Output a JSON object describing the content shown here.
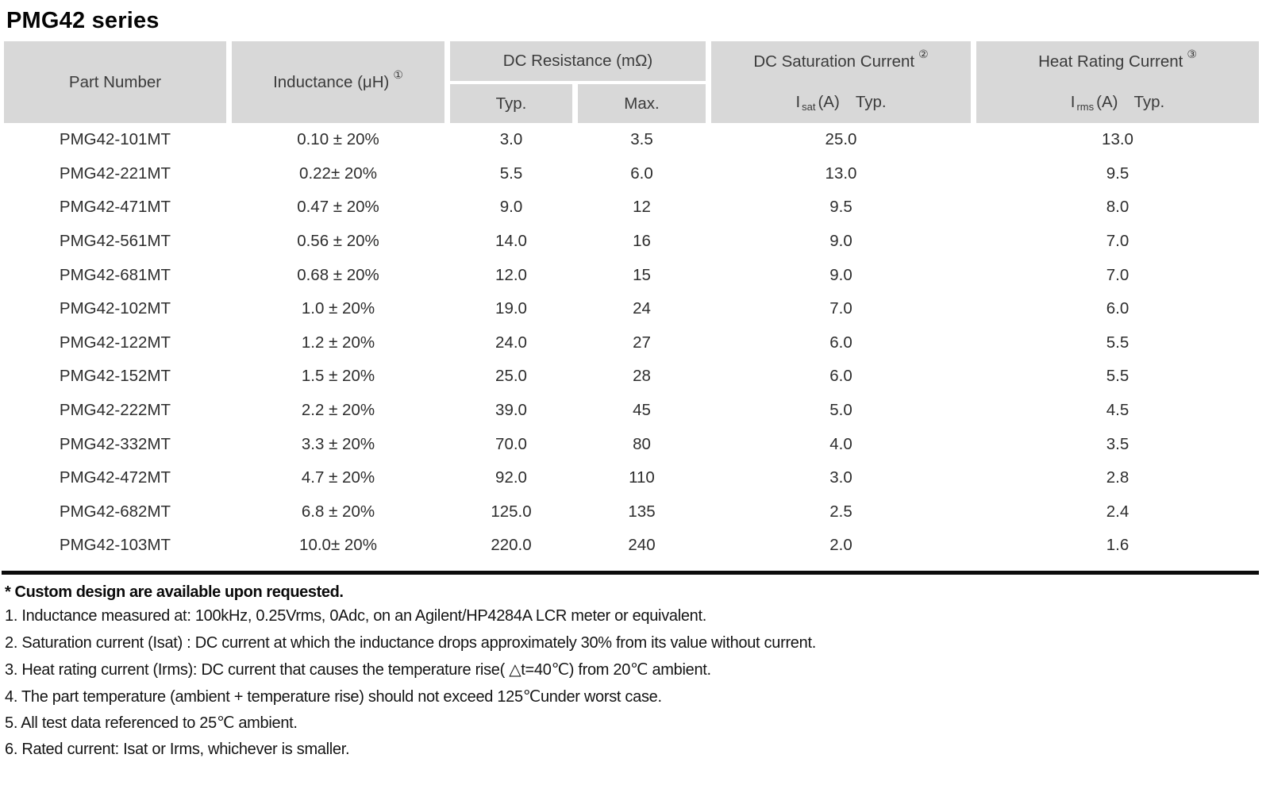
{
  "title": "PMG42 series",
  "table": {
    "header": {
      "part_number": "Part Number",
      "inductance": {
        "label": "Inductance (μH)",
        "sup": "①"
      },
      "dc_resistance": {
        "label": "DC Resistance (mΩ)",
        "typ": "Typ.",
        "max": "Max."
      },
      "dc_saturation": {
        "label": "DC Saturation Current",
        "sup": "②",
        "symbol": "I",
        "subscript": "sat",
        "unit": "(A)",
        "typ": "Typ."
      },
      "heat_rating": {
        "label": "Heat Rating Current",
        "sup": "③",
        "symbol": "I",
        "subscript": "rms",
        "unit": "(A)",
        "typ": "Typ."
      }
    },
    "rows": [
      {
        "part": "PMG42-101MT",
        "inductance": "0.10 ± 20%",
        "dcr_typ": "3.0",
        "dcr_max": "3.5",
        "isat_typ": "25.0",
        "irms_typ": "13.0"
      },
      {
        "part": "PMG42-221MT",
        "inductance": "0.22± 20%",
        "dcr_typ": "5.5",
        "dcr_max": "6.0",
        "isat_typ": "13.0",
        "irms_typ": "9.5"
      },
      {
        "part": "PMG42-471MT",
        "inductance": "0.47 ± 20%",
        "dcr_typ": "9.0",
        "dcr_max": "12",
        "isat_typ": "9.5",
        "irms_typ": "8.0"
      },
      {
        "part": "PMG42-561MT",
        "inductance": "0.56 ± 20%",
        "dcr_typ": "14.0",
        "dcr_max": "16",
        "isat_typ": "9.0",
        "irms_typ": "7.0"
      },
      {
        "part": "PMG42-681MT",
        "inductance": "0.68 ± 20%",
        "dcr_typ": "12.0",
        "dcr_max": "15",
        "isat_typ": "9.0",
        "irms_typ": "7.0"
      },
      {
        "part": "PMG42-102MT",
        "inductance": "1.0 ± 20%",
        "dcr_typ": "19.0",
        "dcr_max": "24",
        "isat_typ": "7.0",
        "irms_typ": "6.0"
      },
      {
        "part": "PMG42-122MT",
        "inductance": "1.2 ± 20%",
        "dcr_typ": "24.0",
        "dcr_max": "27",
        "isat_typ": "6.0",
        "irms_typ": "5.5"
      },
      {
        "part": "PMG42-152MT",
        "inductance": "1.5 ± 20%",
        "dcr_typ": "25.0",
        "dcr_max": "28",
        "isat_typ": "6.0",
        "irms_typ": "5.5"
      },
      {
        "part": "PMG42-222MT",
        "inductance": "2.2 ± 20%",
        "dcr_typ": "39.0",
        "dcr_max": "45",
        "isat_typ": "5.0",
        "irms_typ": "4.5"
      },
      {
        "part": "PMG42-332MT",
        "inductance": "3.3 ± 20%",
        "dcr_typ": "70.0",
        "dcr_max": "80",
        "isat_typ": "4.0",
        "irms_typ": "3.5"
      },
      {
        "part": "PMG42-472MT",
        "inductance": "4.7 ± 20%",
        "dcr_typ": "92.0",
        "dcr_max": "110",
        "isat_typ": "3.0",
        "irms_typ": "2.8"
      },
      {
        "part": "PMG42-682MT",
        "inductance": "6.8 ± 20%",
        "dcr_typ": "125.0",
        "dcr_max": "135",
        "isat_typ": "2.5",
        "irms_typ": "2.4"
      },
      {
        "part": "PMG42-103MT",
        "inductance": "10.0± 20%",
        "dcr_typ": "220.0",
        "dcr_max": "240",
        "isat_typ": "2.0",
        "irms_typ": "1.6"
      }
    ]
  },
  "notes": {
    "custom": "* Custom design are available upon requested.",
    "items": [
      "1. Inductance measured at: 100kHz, 0.25Vrms, 0Adc, on an Agilent/HP4284A LCR meter or equivalent.",
      "2. Saturation current (Isat) : DC current at which the inductance drops approximately 30% from its value without current.",
      "3. Heat rating current (Irms): DC current that causes the temperature rise( △t=40℃) from 20℃ ambient.",
      "4. The part temperature (ambient + temperature rise) should not exceed 125℃under worst case.",
      "5. All test data referenced to 25℃ ambient.",
      "6. Rated current: Isat or Irms, whichever is smaller."
    ]
  },
  "colors": {
    "header_bg": "#d8d8d8",
    "rule": "#0c0c0c"
  }
}
